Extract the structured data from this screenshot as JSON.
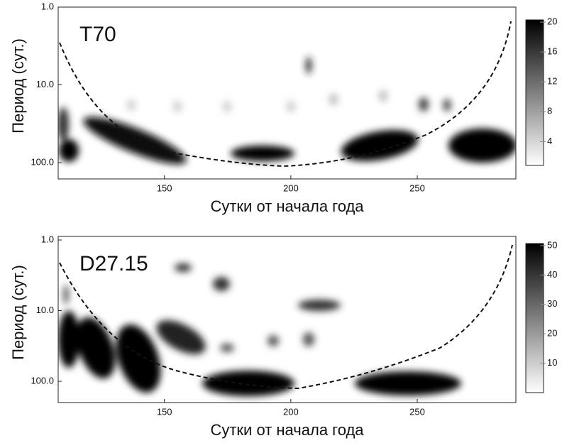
{
  "chart_data": [
    {
      "type": "heatmap",
      "label": "T70",
      "xlabel": "Сутки от начала года",
      "ylabel": "Период (сут.)",
      "xlim": [
        108,
        289
      ],
      "xticks": [
        150,
        200,
        250
      ],
      "ylim": [
        1,
        162
      ],
      "yscale": "log",
      "y_inverted": true,
      "yticks": [
        {
          "value": 1,
          "label": "1.0"
        },
        {
          "value": 10,
          "label": "10.0"
        },
        {
          "value": 100,
          "label": "100.0"
        }
      ],
      "colormap": [
        "#ffffff",
        "#000000"
      ],
      "colorbar_lim": [
        0.8,
        20.3
      ],
      "colorbar_ticks": [
        4,
        8,
        12,
        16,
        20
      ]
    },
    {
      "type": "heatmap",
      "label": "D27.15",
      "xlabel": "Сутки от начала года",
      "ylabel": "Период (сут.)",
      "xlim": [
        108,
        289
      ],
      "xticks": [
        150,
        200,
        250
      ],
      "ylim": [
        0.89,
        200
      ],
      "yscale": "log",
      "y_inverted": true,
      "yticks": [
        {
          "value": 1,
          "label": "1.0"
        },
        {
          "value": 10,
          "label": "10.0"
        },
        {
          "value": 100,
          "label": "100.0"
        }
      ],
      "colormap": [
        "#ffffff",
        "#000000"
      ],
      "colorbar_lim": [
        0,
        50.7
      ],
      "colorbar_ticks": [
        10,
        20,
        30,
        40,
        50
      ]
    }
  ]
}
